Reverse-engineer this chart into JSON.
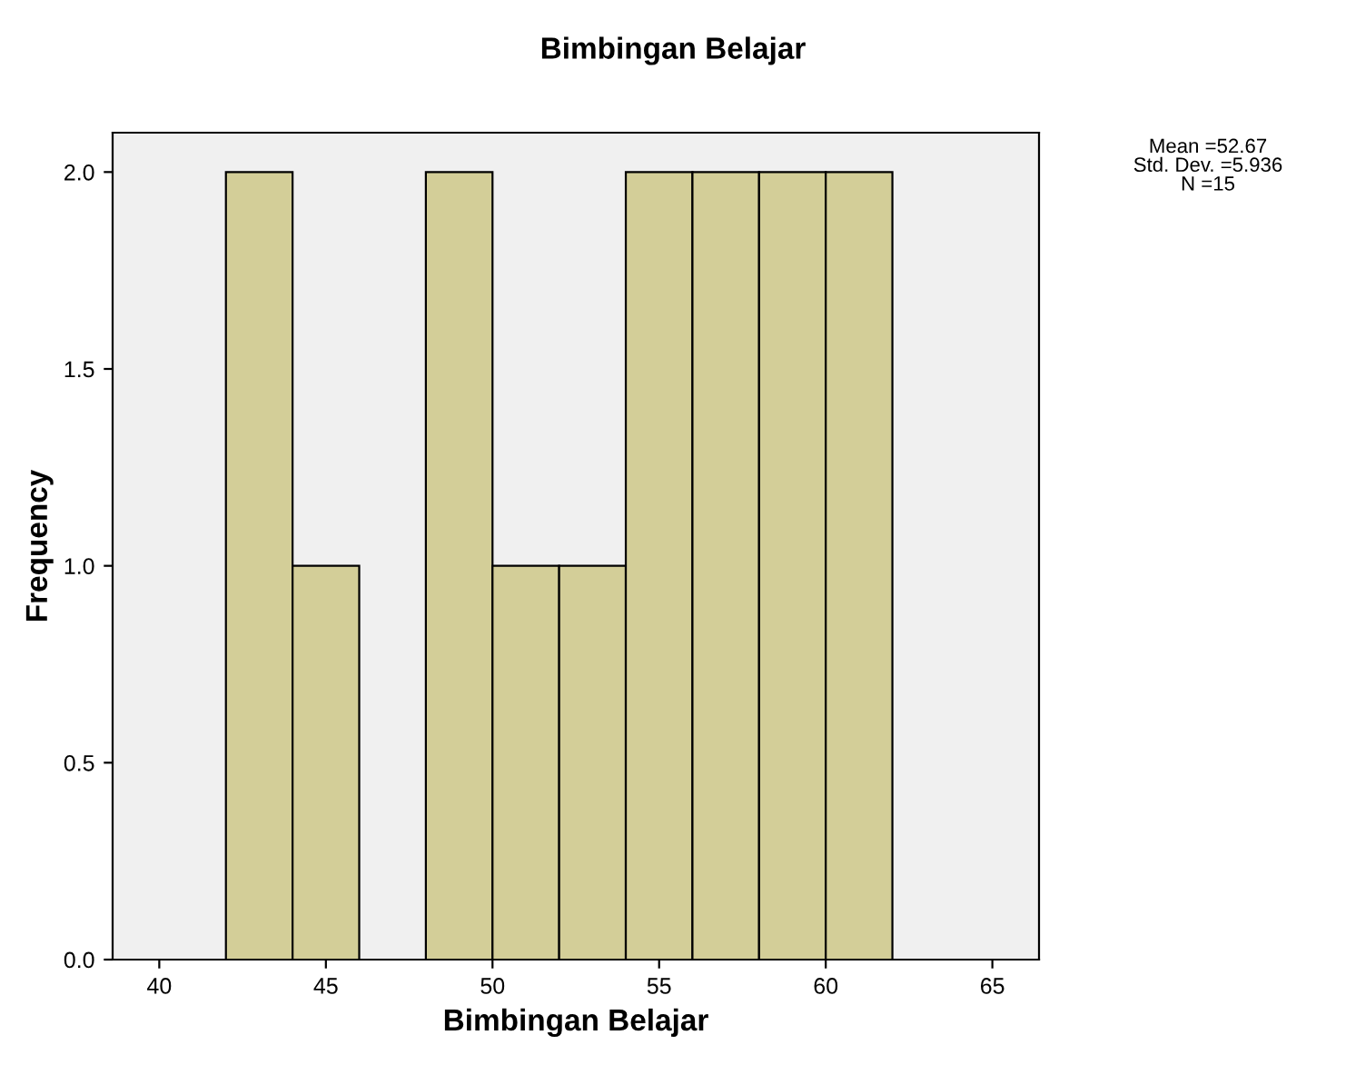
{
  "chart_data": {
    "type": "histogram",
    "title": "Bimbingan Belajar",
    "xlabel": "Bimbingan Belajar",
    "ylabel": "Frequency",
    "bins": [
      42,
      44,
      46,
      48,
      50,
      52,
      54,
      56,
      58,
      60,
      62
    ],
    "values": [
      2,
      1,
      0,
      2,
      1,
      1,
      2,
      2,
      2,
      2
    ],
    "color": "#d3ce98",
    "xlim": [
      38.6,
      66.4
    ],
    "xticks": [
      40,
      45,
      50,
      55,
      60,
      65
    ],
    "ylim": [
      0,
      2.1
    ],
    "yticks": [
      {
        "value": 0,
        "label": "0.0"
      },
      {
        "value": 0.5,
        "label": "0.5"
      },
      {
        "value": 1,
        "label": "1.0"
      },
      {
        "value": 1.5,
        "label": "1.5"
      },
      {
        "value": 2,
        "label": "2.0"
      }
    ],
    "annotations": [
      "Mean =52.67\nStd. Dev. =5.936\nN =15"
    ],
    "grid": false,
    "legend": false
  }
}
